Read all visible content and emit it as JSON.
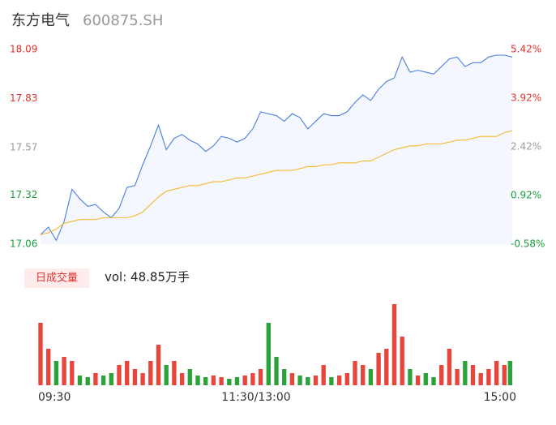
{
  "chart_data": {
    "type": "intraday",
    "title": "东方电气",
    "subtitle": "600875.SH",
    "x": [
      0,
      4,
      8,
      12,
      16,
      20,
      24,
      28,
      32,
      36,
      40,
      44,
      48,
      52,
      56,
      60,
      64,
      68,
      72,
      76,
      80,
      84,
      88,
      92,
      96,
      100,
      104,
      108,
      112,
      116,
      120,
      124,
      128,
      132,
      136,
      140,
      144,
      148,
      152,
      156,
      160,
      164,
      168,
      172,
      176,
      180,
      184,
      188,
      192,
      196,
      200,
      204,
      208,
      212,
      216,
      220,
      224,
      228,
      232,
      236,
      240
    ],
    "xlim": [
      0,
      240
    ],
    "xticks": [
      {
        "value": 0,
        "label": "09:30"
      },
      {
        "value": 120,
        "label": "11:30/13:00"
      },
      {
        "value": 240,
        "label": "15:00"
      }
    ],
    "series": [
      {
        "name": "price",
        "color": "#4a7ee0",
        "values": [
          17.11,
          17.15,
          17.08,
          17.18,
          17.35,
          17.3,
          17.26,
          17.27,
          17.23,
          17.2,
          17.25,
          17.36,
          17.37,
          17.48,
          17.58,
          17.69,
          17.56,
          17.62,
          17.64,
          17.61,
          17.59,
          17.55,
          17.58,
          17.63,
          17.62,
          17.6,
          17.62,
          17.67,
          17.76,
          17.75,
          17.74,
          17.71,
          17.75,
          17.73,
          17.67,
          17.71,
          17.75,
          17.74,
          17.74,
          17.76,
          17.81,
          17.85,
          17.82,
          17.88,
          17.92,
          17.94,
          18.05,
          17.97,
          17.98,
          17.97,
          17.96,
          18.0,
          18.04,
          18.05,
          18.0,
          18.02,
          18.02,
          18.05,
          18.06,
          18.06,
          18.05
        ]
      },
      {
        "name": "average",
        "color": "#f5b82e",
        "values": [
          17.11,
          17.12,
          17.14,
          17.17,
          17.18,
          17.19,
          17.19,
          17.19,
          17.2,
          17.2,
          17.2,
          17.2,
          17.21,
          17.23,
          17.27,
          17.31,
          17.34,
          17.35,
          17.36,
          17.37,
          17.37,
          17.38,
          17.39,
          17.39,
          17.4,
          17.41,
          17.41,
          17.42,
          17.43,
          17.44,
          17.45,
          17.45,
          17.45,
          17.46,
          17.47,
          17.47,
          17.48,
          17.48,
          17.49,
          17.49,
          17.49,
          17.5,
          17.5,
          17.52,
          17.54,
          17.56,
          17.57,
          17.58,
          17.58,
          17.59,
          17.59,
          17.59,
          17.6,
          17.61,
          17.61,
          17.62,
          17.63,
          17.63,
          17.63,
          17.65,
          17.66
        ]
      }
    ],
    "ylim": [
      17.06,
      18.09
    ],
    "yticks": [
      17.06,
      17.32,
      17.57,
      17.83,
      18.09
    ],
    "ytick_colors": [
      "#1a9e3a",
      "#1a9e3a",
      "#999999",
      "#e0322c",
      "#e0322c"
    ],
    "y2lim": [
      -0.58,
      5.42
    ],
    "y2ticks": [
      {
        "value": -0.58,
        "label": "-0.58%"
      },
      {
        "value": 0.92,
        "label": "0.92%"
      },
      {
        "value": 2.42,
        "label": "2.42%"
      },
      {
        "value": 3.92,
        "label": "3.92%"
      },
      {
        "value": 5.42,
        "label": "5.42%"
      }
    ],
    "area_color": "#f4f7fd",
    "volume": {
      "legend": "日成交量",
      "label": "vol: 48.85万手",
      "values": [
        77,
        45,
        30,
        35,
        30,
        12,
        10,
        15,
        12,
        15,
        25,
        30,
        20,
        15,
        30,
        50,
        25,
        30,
        15,
        20,
        12,
        10,
        12,
        10,
        8,
        10,
        12,
        15,
        20,
        77,
        35,
        20,
        15,
        12,
        10,
        12,
        25,
        10,
        12,
        15,
        30,
        25,
        20,
        40,
        45,
        100,
        60,
        20,
        12,
        15,
        10,
        25,
        45,
        20,
        30,
        25,
        15,
        20,
        30,
        25,
        30
      ],
      "ylim": [
        0,
        100
      ],
      "up_color": "#e8453c",
      "down_color": "#2aa43a"
    }
  }
}
